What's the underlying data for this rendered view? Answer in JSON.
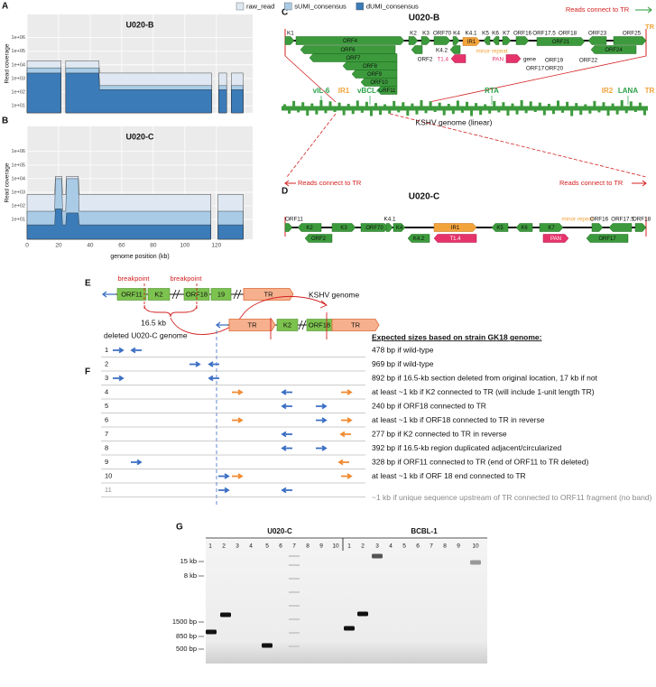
{
  "panel_labels": [
    "A",
    "B",
    "C",
    "D",
    "E",
    "F",
    "G"
  ],
  "chart_data": [
    {
      "type": "area",
      "title": "U020-B",
      "y_label": "Read coverage",
      "log_scale": true,
      "grid": true,
      "legend": true,
      "xtick_labels": false,
      "xlim": [
        0,
        143
      ],
      "ylim": [
        3,
        50000000
      ],
      "xticks": [
        0,
        20,
        40,
        60,
        80,
        100,
        120
      ],
      "yticks": [
        {
          "value": 10,
          "label": "1e+01"
        },
        {
          "value": 100,
          "label": "1e+02"
        },
        {
          "value": 1000,
          "label": "1e+03"
        },
        {
          "value": 10000,
          "label": "1e+04"
        },
        {
          "value": 100000,
          "label": "1e+05"
        },
        {
          "value": 1000000,
          "label": "1e+06"
        }
      ],
      "x": [
        0,
        21.5,
        22,
        24,
        24.5,
        45.5,
        46,
        117,
        117.5,
        121,
        121.5,
        126.5,
        127,
        129,
        129.5,
        137
      ],
      "series": [
        {
          "name": "raw_read",
          "color": "#dfe8f2",
          "values": [
            20000,
            20000,
            null,
            null,
            20000,
            20000,
            2500,
            2500,
            null,
            null,
            2500,
            2500,
            null,
            null,
            2500,
            2500
          ]
        },
        {
          "name": "sUMI_consensus",
          "color": "#a9cbe6",
          "values": [
            6000,
            6000,
            null,
            null,
            6000,
            6000,
            300,
            300,
            null,
            null,
            300,
            300,
            null,
            null,
            300,
            300
          ]
        },
        {
          "name": "dUMI_consensus",
          "color": "#3b7bb8",
          "values": [
            2500,
            2500,
            null,
            null,
            2500,
            2500,
            150,
            150,
            null,
            null,
            150,
            150,
            null,
            null,
            150,
            150
          ]
        }
      ]
    },
    {
      "type": "area",
      "title": "U020-C",
      "y_label": "Read coverage",
      "x_label": "genome position (kb)",
      "log_scale": true,
      "grid": true,
      "legend": false,
      "xtick_labels": true,
      "xlim": [
        0,
        143
      ],
      "ylim": [
        0.35,
        70000000
      ],
      "xticks": [
        0,
        20,
        40,
        60,
        80,
        100,
        120
      ],
      "yticks": [
        {
          "value": 10,
          "label": "1e+01"
        },
        {
          "value": 100,
          "label": "1e+02"
        },
        {
          "value": 1000,
          "label": "1e+03"
        },
        {
          "value": 10000,
          "label": "1e+04"
        },
        {
          "value": 100000,
          "label": "1e+05"
        },
        {
          "value": 1000000,
          "label": "1e+06"
        }
      ],
      "x": [
        0,
        17.5,
        18,
        22,
        22.5,
        24.5,
        25,
        32.5,
        33,
        116.5,
        117,
        120.5,
        121,
        137
      ],
      "series": [
        {
          "color": "#dfe8f2",
          "values": [
            700,
            700,
            15000,
            15000,
            700,
            700,
            15000,
            15000,
            700,
            700,
            null,
            null,
            700,
            700
          ]
        },
        {
          "color": "#a9cbe6",
          "values": [
            40,
            40,
            10000,
            10000,
            40,
            40,
            10000,
            10000,
            40,
            40,
            null,
            null,
            40,
            40
          ]
        },
        {
          "color": "#3b7bb8",
          "values": [
            4,
            4,
            60,
            60,
            4,
            4,
            30,
            30,
            4,
            4,
            null,
            null,
            4,
            4
          ]
        }
      ]
    }
  ],
  "map_c": {
    "title": "U020-B",
    "tr_note": "Reads connect to TR",
    "tr": "TR",
    "genes": [
      "K1",
      "ORF4",
      "K2",
      "K3",
      "ORF70",
      "K4",
      "K4.1",
      "K5",
      "K6",
      "K7",
      "ORF16",
      "ORF17.5",
      "ORF18",
      "ORF23",
      "ORF25",
      "ORF6",
      "IR1",
      "minor repeat",
      "K4.2",
      "ORF2",
      "T1.4",
      "PAN",
      "gene",
      "ORF21",
      "ORF24",
      "ORF7",
      "ORF17",
      "ORF19",
      "ORF20",
      "ORF22",
      "ORF8",
      "ORF9",
      "ORF10",
      "ORF11"
    ]
  },
  "linear": {
    "labels": [
      "vIL-6",
      "IR1",
      "vBCL-2",
      "RTA",
      "IR2",
      "LANA",
      "TR"
    ],
    "caption": "KSHV genome (linear)"
  },
  "map_d": {
    "title": "U020-C",
    "tr_note_left": "Reads connect to TR",
    "tr_note_right": "Reads connect to TR",
    "genes": [
      "ORF11",
      "K2",
      "ORF2",
      "K3",
      "ORF70",
      "K4",
      "K4.1",
      "K4.2",
      "IR1",
      "T1.4",
      "K5",
      "K6",
      "K7",
      "PAN",
      "minor repeat",
      "ORF16",
      "ORF17.5",
      "ORF17",
      "ORF18"
    ]
  },
  "schematic": {
    "breakpoints": [
      "breakpoint",
      "breakpoint"
    ],
    "top_boxes": [
      "ORF11",
      "K2",
      "ORF18",
      "19",
      "TR"
    ],
    "top_caption": "KSHV genome",
    "span": "16.5 kb",
    "bottom_caption": "deleted U020-C genome",
    "bottom_boxes": [
      "TR",
      "K2",
      "ORF18",
      "TR"
    ]
  },
  "table": {
    "header": "Expected sizes based on strain GK18 genome:",
    "rows": [
      {
        "number": 1,
        "text": "478 bp if wild-type"
      },
      {
        "number": 2,
        "text": "969 bp if wild-type"
      },
      {
        "number": 3,
        "text": "892 bp if 16.5-kb section deleted from original location, 17 kb if not"
      },
      {
        "number": 4,
        "text": "at least ~1 kb if K2 connected to TR (will include 1-unit length TR)"
      },
      {
        "number": 5,
        "text": "240 bp if ORF18 connected to TR"
      },
      {
        "number": 6,
        "text": "at least ~1 kb if ORF18 connected to TR in reverse"
      },
      {
        "number": 7,
        "text": "277 bp  if K2 connected to TR in reverse"
      },
      {
        "number": 8,
        "text": "392 bp if 16.5-kb region duplicated adjacent/circularized"
      },
      {
        "number": 9,
        "text": "328 bp if ORF11 connected to TR (end of ORF11 to TR deleted)"
      },
      {
        "number": 10,
        "text": "at least ~1 kb if ORF 18 end connected to TR"
      },
      {
        "number": 11,
        "text": "~1 kb if unique sequence upstream of TR connected to ORF11 fragment (no band)"
      }
    ]
  },
  "gel": {
    "groups": [
      {
        "name": "U020-C",
        "lanes": [
          1,
          2,
          3,
          4,
          5,
          6,
          7,
          8,
          9,
          10
        ]
      },
      {
        "name": "BCBL-1",
        "lanes": [
          1,
          2,
          3,
          4,
          5,
          6,
          7,
          8,
          9,
          10
        ]
      }
    ],
    "ladder": [
      "15 kb",
      "8 kb",
      "1500 bp",
      "850 bp",
      "500 bp"
    ]
  }
}
